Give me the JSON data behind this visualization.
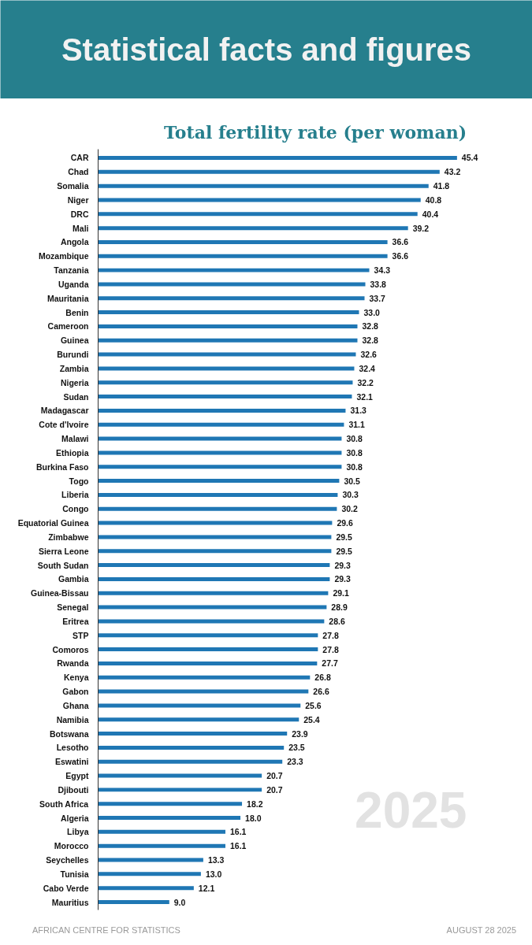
{
  "chart_data": {
    "type": "bar",
    "orientation": "horizontal",
    "title": "Statistical facts and figures",
    "subtitle": "Total fertility rate (per woman)",
    "categories": [
      "CAR",
      "Chad",
      "Somalia",
      "Niger",
      "DRC",
      "Mali",
      "Angola",
      "Mozambique",
      "Tanzania",
      "Uganda",
      "Mauritania",
      "Benin",
      "Cameroon",
      "Guinea",
      "Burundi",
      "Zambia",
      "Nigeria",
      "Sudan",
      "Madagascar",
      "Cote d'Ivoire",
      "Malawi",
      "Ethiopia",
      "Burkina Faso",
      "Togo",
      "Liberia",
      "Congo",
      "Equatorial Guinea",
      "Zimbabwe",
      "Sierra Leone",
      "South Sudan",
      "Gambia",
      "Guinea-Bissau",
      "Senegal",
      "Eritrea",
      "STP",
      "Comoros",
      "Rwanda",
      "Kenya",
      "Gabon",
      "Ghana",
      "Namibia",
      "Botswana",
      "Lesotho",
      "Eswatini",
      "Egypt",
      "Djibouti",
      "South Africa",
      "Algeria",
      "Libya",
      "Morocco",
      "Seychelles",
      "Tunisia",
      "Cabo Verde",
      "Mauritius"
    ],
    "values": [
      45.4,
      43.2,
      41.8,
      40.8,
      40.4,
      39.2,
      36.6,
      36.6,
      34.3,
      33.8,
      33.7,
      33.0,
      32.8,
      32.8,
      32.6,
      32.4,
      32.2,
      32.1,
      31.3,
      31.1,
      30.8,
      30.8,
      30.8,
      30.5,
      30.3,
      30.2,
      29.6,
      29.5,
      29.5,
      29.3,
      29.3,
      29.1,
      28.9,
      28.6,
      27.8,
      27.8,
      27.7,
      26.8,
      26.6,
      25.6,
      25.4,
      23.9,
      23.5,
      23.3,
      20.7,
      20.7,
      18.2,
      18.0,
      16.1,
      16.1,
      13.3,
      13.0,
      12.1,
      9.0
    ],
    "value_labels": [
      "45.4",
      "43.2",
      "41.8",
      "40.8",
      "40.4",
      "39.2",
      "36.6",
      "36.6",
      "34.3",
      "33.8",
      "33.7",
      "33.0",
      "32.8",
      "32.8",
      "32.6",
      "32.4",
      "32.2",
      "32.1",
      "31.3",
      "31.1",
      "30.8",
      "30.8",
      "30.8",
      "30.5",
      "30.3",
      "30.2",
      "29.6",
      "29.5",
      "29.5",
      "29.3",
      "29.3",
      "29.1",
      "28.9",
      "28.6",
      "27.8",
      "27.8",
      "27.7",
      "26.8",
      "26.6",
      "25.6",
      "25.4",
      "23.9",
      "23.5",
      "23.3",
      "20.7",
      "20.7",
      "18.2",
      "18.0",
      "16.1",
      "16.1",
      "13.3",
      "13.0",
      "12.1",
      "9.0"
    ],
    "color": "#1f77b4",
    "annotations": [
      "2025",
      "AFRICAN CENTRE FOR STATISTICS",
      "AUGUST 28 2025"
    ]
  }
}
